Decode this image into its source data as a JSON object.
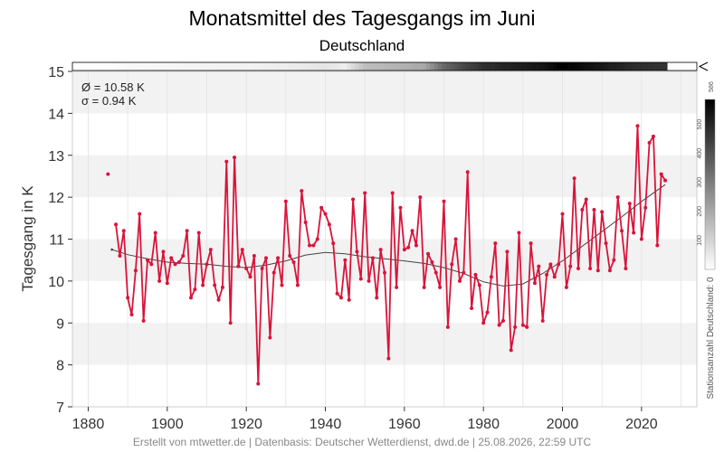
{
  "chart_data": {
    "type": "line",
    "title": "Monatsmittel des Tagesgangs im Juni",
    "subtitle": "Deutschland",
    "ylabel": "Tagesgang in K",
    "xlim": [
      1876,
      2034
    ],
    "ylim": [
      7,
      15
    ],
    "x_ticks": [
      1880,
      1900,
      1920,
      1940,
      1960,
      1980,
      2000,
      2020
    ],
    "y_ticks": [
      7,
      8,
      9,
      10,
      11,
      12,
      13,
      14,
      15
    ],
    "stats": {
      "mean": "Ø = 10.58 K",
      "sigma": "σ = 0.94 K"
    },
    "station_axis": {
      "label": "Stationsanzahl Deutschland: 0",
      "max_label": "586",
      "ticks": [
        "100",
        "200",
        "300",
        "400",
        "500"
      ]
    },
    "footer": "Erstellt von mtwetter.de | Datenbasis: Deutscher Wetterdienst, dwd.de | 25.08.2026, 22:59 UTC",
    "colors": {
      "series": "#d9143a",
      "trend": "#444444",
      "band": "#f2f2f2"
    },
    "series": [
      {
        "values": [
          [
            1885,
            12.55
          ],
          [
            1887,
            11.35
          ],
          [
            1888,
            10.6
          ],
          [
            1889,
            11.2
          ],
          [
            1890,
            9.6
          ],
          [
            1891,
            9.2
          ],
          [
            1892,
            10.25
          ],
          [
            1893,
            11.6
          ],
          [
            1894,
            9.05
          ],
          [
            1895,
            10.5
          ],
          [
            1896,
            10.4
          ],
          [
            1897,
            11.15
          ],
          [
            1898,
            10.0
          ],
          [
            1899,
            10.7
          ],
          [
            1900,
            9.95
          ],
          [
            1901,
            10.55
          ],
          [
            1902,
            10.4
          ],
          [
            1903,
            10.45
          ],
          [
            1904,
            10.6
          ],
          [
            1905,
            11.2
          ],
          [
            1906,
            9.6
          ],
          [
            1907,
            9.8
          ],
          [
            1908,
            11.15
          ],
          [
            1909,
            9.9
          ],
          [
            1910,
            10.4
          ],
          [
            1911,
            10.75
          ],
          [
            1912,
            9.9
          ],
          [
            1913,
            9.55
          ],
          [
            1914,
            9.85
          ],
          [
            1915,
            12.85
          ],
          [
            1916,
            9.0
          ],
          [
            1917,
            12.95
          ],
          [
            1918,
            10.35
          ],
          [
            1919,
            10.75
          ],
          [
            1920,
            10.3
          ],
          [
            1921,
            10.1
          ],
          [
            1922,
            10.6
          ],
          [
            1923,
            7.55
          ],
          [
            1924,
            10.3
          ],
          [
            1925,
            10.55
          ],
          [
            1926,
            8.65
          ],
          [
            1927,
            10.2
          ],
          [
            1928,
            10.55
          ],
          [
            1929,
            9.9
          ],
          [
            1930,
            11.9
          ],
          [
            1931,
            10.6
          ],
          [
            1932,
            10.45
          ],
          [
            1933,
            9.9
          ],
          [
            1934,
            12.15
          ],
          [
            1935,
            11.4
          ],
          [
            1936,
            10.85
          ],
          [
            1937,
            10.85
          ],
          [
            1938,
            11.0
          ],
          [
            1939,
            11.75
          ],
          [
            1940,
            11.6
          ],
          [
            1941,
            11.35
          ],
          [
            1942,
            10.9
          ],
          [
            1943,
            9.7
          ],
          [
            1944,
            9.6
          ],
          [
            1945,
            10.5
          ],
          [
            1946,
            9.55
          ],
          [
            1947,
            11.95
          ],
          [
            1948,
            10.7
          ],
          [
            1949,
            10.05
          ],
          [
            1950,
            12.1
          ],
          [
            1951,
            10.0
          ],
          [
            1952,
            10.55
          ],
          [
            1953,
            9.6
          ],
          [
            1954,
            10.75
          ],
          [
            1955,
            10.2
          ],
          [
            1956,
            8.15
          ],
          [
            1957,
            12.1
          ],
          [
            1958,
            9.85
          ],
          [
            1959,
            11.75
          ],
          [
            1960,
            10.75
          ],
          [
            1961,
            10.8
          ],
          [
            1962,
            11.2
          ],
          [
            1963,
            10.85
          ],
          [
            1964,
            12.0
          ],
          [
            1965,
            9.85
          ],
          [
            1966,
            10.65
          ],
          [
            1967,
            10.45
          ],
          [
            1968,
            10.2
          ],
          [
            1969,
            9.85
          ],
          [
            1970,
            11.9
          ],
          [
            1971,
            8.9
          ],
          [
            1972,
            10.4
          ],
          [
            1973,
            11.0
          ],
          [
            1974,
            10.0
          ],
          [
            1975,
            10.2
          ],
          [
            1976,
            12.6
          ],
          [
            1977,
            9.35
          ],
          [
            1978,
            10.15
          ],
          [
            1979,
            9.9
          ],
          [
            1980,
            9.0
          ],
          [
            1981,
            9.25
          ],
          [
            1982,
            10.1
          ],
          [
            1983,
            10.9
          ],
          [
            1984,
            8.95
          ],
          [
            1985,
            9.05
          ],
          [
            1986,
            10.7
          ],
          [
            1987,
            8.35
          ],
          [
            1988,
            8.9
          ],
          [
            1989,
            11.15
          ],
          [
            1990,
            8.95
          ],
          [
            1991,
            8.9
          ],
          [
            1992,
            10.9
          ],
          [
            1993,
            9.95
          ],
          [
            1994,
            10.35
          ],
          [
            1995,
            9.05
          ],
          [
            1996,
            10.15
          ],
          [
            1997,
            10.4
          ],
          [
            1998,
            10.1
          ],
          [
            1999,
            10.4
          ],
          [
            2000,
            11.6
          ],
          [
            2001,
            9.85
          ],
          [
            2002,
            10.35
          ],
          [
            2003,
            12.45
          ],
          [
            2004,
            10.3
          ],
          [
            2005,
            11.7
          ],
          [
            2006,
            11.95
          ],
          [
            2007,
            10.3
          ],
          [
            2008,
            11.7
          ],
          [
            2009,
            10.25
          ],
          [
            2010,
            11.65
          ],
          [
            2011,
            10.9
          ],
          [
            2012,
            10.25
          ],
          [
            2013,
            10.5
          ],
          [
            2014,
            12.0
          ],
          [
            2015,
            11.2
          ],
          [
            2016,
            10.3
          ],
          [
            2017,
            11.85
          ],
          [
            2018,
            11.15
          ],
          [
            2019,
            13.7
          ],
          [
            2020,
            11.0
          ],
          [
            2021,
            11.75
          ],
          [
            2022,
            13.3
          ],
          [
            2023,
            13.45
          ],
          [
            2024,
            10.85
          ],
          [
            2025,
            12.55
          ],
          [
            2026,
            12.4
          ]
        ]
      }
    ],
    "trend": [
      [
        1886,
        10.75
      ],
      [
        1890,
        10.63
      ],
      [
        1895,
        10.53
      ],
      [
        1900,
        10.45
      ],
      [
        1905,
        10.42
      ],
      [
        1910,
        10.4
      ],
      [
        1915,
        10.35
      ],
      [
        1920,
        10.32
      ],
      [
        1925,
        10.38
      ],
      [
        1930,
        10.48
      ],
      [
        1935,
        10.62
      ],
      [
        1940,
        10.68
      ],
      [
        1945,
        10.65
      ],
      [
        1950,
        10.58
      ],
      [
        1955,
        10.53
      ],
      [
        1960,
        10.48
      ],
      [
        1965,
        10.42
      ],
      [
        1970,
        10.32
      ],
      [
        1975,
        10.18
      ],
      [
        1980,
        9.98
      ],
      [
        1985,
        9.88
      ],
      [
        1990,
        9.93
      ],
      [
        1995,
        10.18
      ],
      [
        2000,
        10.48
      ],
      [
        2005,
        10.83
      ],
      [
        2010,
        11.18
      ],
      [
        2015,
        11.53
      ],
      [
        2020,
        11.9
      ],
      [
        2026,
        12.3
      ]
    ],
    "station_counts": [
      [
        1880,
        0
      ],
      [
        1885,
        5
      ],
      [
        1890,
        15
      ],
      [
        1900,
        20
      ],
      [
        1910,
        25
      ],
      [
        1920,
        30
      ],
      [
        1930,
        40
      ],
      [
        1940,
        60
      ],
      [
        1945,
        40
      ],
      [
        1950,
        150
      ],
      [
        1960,
        180
      ],
      [
        1965,
        200
      ],
      [
        1970,
        350
      ],
      [
        1975,
        420
      ],
      [
        1980,
        480
      ],
      [
        1985,
        500
      ],
      [
        1990,
        520
      ],
      [
        1995,
        540
      ],
      [
        2000,
        586
      ],
      [
        2005,
        560
      ],
      [
        2010,
        530
      ],
      [
        2015,
        500
      ],
      [
        2020,
        480
      ],
      [
        2026,
        470
      ]
    ]
  }
}
